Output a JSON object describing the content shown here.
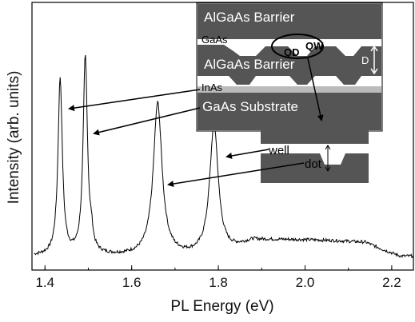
{
  "chart_data": {
    "type": "line",
    "xlabel": "PL Energy (eV)",
    "ylabel": "Intensity (arb. units)",
    "xlim": [
      1.37,
      2.25
    ],
    "ylim": [
      0,
      1.0
    ],
    "x_ticks": [
      "1.4",
      "1.6",
      "1.8",
      "2.0",
      "2.2"
    ],
    "x_tick_values": [
      1.4,
      1.6,
      1.8,
      2.0,
      2.2
    ],
    "y_ticks_labeled": false,
    "grid": false,
    "series": [
      {
        "peaks": [
          {
            "center": 1.435,
            "height": 0.66,
            "width": 0.006
          },
          {
            "center": 1.493,
            "height": 0.74,
            "width": 0.006
          },
          {
            "center": 1.66,
            "height": 0.57,
            "width": 0.012
          },
          {
            "center": 1.79,
            "height": 0.49,
            "width": 0.012
          }
        ],
        "broad_band": {
          "start": 1.8,
          "end": 2.22,
          "level": 0.06
        },
        "baseline": 0.01
      }
    ]
  },
  "inset": {
    "layer_top": "AlGaAs Barrier",
    "layer_gaas": "GaAs",
    "layer_mid": "AlGaAs Barrier",
    "layer_inas": "InAs",
    "layer_substrate": "GaAs Substrate",
    "label_qd": "QD",
    "label_qw": "QW",
    "label_d": "D"
  },
  "zoom": {
    "label_well": "well",
    "label_dot": "dot"
  },
  "colors": {
    "layer_dark": "#555555",
    "layer_inas": "#bbbbbb",
    "line": "#000000"
  }
}
